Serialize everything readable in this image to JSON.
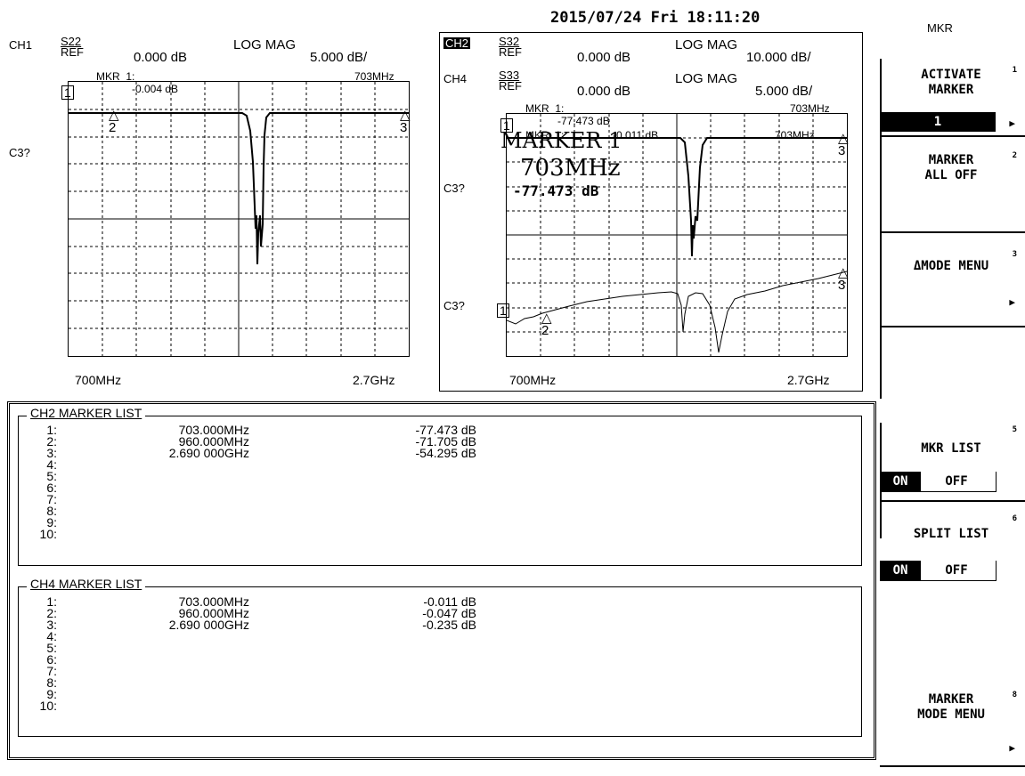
{
  "datetime": "2015/07/24 Fri 18:11:20",
  "softkeys": {
    "menu_title": "MKR",
    "activate_marker": {
      "line1": "ACTIVATE",
      "line2": "MARKER",
      "value": "1",
      "num": "1"
    },
    "marker_all_off": {
      "line1": "MARKER",
      "line2": "ALL OFF",
      "num": "2"
    },
    "delta_mode_menu": {
      "label": "ΔMODE MENU",
      "num": "3"
    },
    "mkr_list": {
      "label": "MKR LIST",
      "on": "ON",
      "off": "OFF",
      "num": "5"
    },
    "split_list": {
      "label": "SPLIT LIST",
      "on": "ON",
      "off": "OFF",
      "num": "6"
    },
    "marker_mode_menu": {
      "line1": "MARKER",
      "line2": "MODE MENU",
      "num": "8"
    }
  },
  "left_plot": {
    "ch": "CH1",
    "param": "S22",
    "format": "LOG MAG",
    "ref_label": "REF",
    "ref": "0.000 dB",
    "scale": "5.000 dB/",
    "mkr_label": "MKR  1:",
    "mkr_freq": "703MHz",
    "mkr_val": "-0.004 dB",
    "side_label": "C3?",
    "start": "700MHz",
    "stop": "2.7GHz",
    "markers": [
      "1",
      "2",
      "3"
    ]
  },
  "right_plot": {
    "ch_a": "CH2",
    "param_a": "S32",
    "format_a": "LOG MAG",
    "ref_a": "0.000 dB",
    "scale_a": "10.000 dB/",
    "ch_b": "CH4",
    "param_b": "S33",
    "format_b": "LOG MAG",
    "ref_b": "0.000 dB",
    "scale_b": "5.000 dB/",
    "ref_label": "REF",
    "mkr_label": "MKR  1:",
    "mkr_freq": "703MHz",
    "mkr_val": "-77.473 dB",
    "mkr_label2": "MKR  1:",
    "mkr_val2": "-0.011 dB",
    "mkr_freq2": "703MHz",
    "big_marker": "MARKER 1",
    "big_freq": "703MHz",
    "big_val": "-77.473 dB",
    "side_label_1": "C3?",
    "side_label_2": "C3?",
    "start": "700MHz",
    "stop": "2.7GHz",
    "markers": [
      "1",
      "2",
      "3"
    ]
  },
  "ch2_list": {
    "title": "CH2 MARKER LIST",
    "rows": [
      {
        "n": "1:",
        "f": "703.000MHz",
        "v": "-77.473 dB"
      },
      {
        "n": "2:",
        "f": "960.000MHz",
        "v": "-71.705 dB"
      },
      {
        "n": "3:",
        "f": "2.690 000GHz",
        "v": "-54.295 dB"
      },
      {
        "n": "4:",
        "f": "",
        "v": ""
      },
      {
        "n": "5:",
        "f": "",
        "v": ""
      },
      {
        "n": "6:",
        "f": "",
        "v": ""
      },
      {
        "n": "7:",
        "f": "",
        "v": ""
      },
      {
        "n": "8:",
        "f": "",
        "v": ""
      },
      {
        "n": "9:",
        "f": "",
        "v": ""
      },
      {
        "n": "10:",
        "f": "",
        "v": ""
      }
    ]
  },
  "ch4_list": {
    "title": "CH4 MARKER LIST",
    "rows": [
      {
        "n": "1:",
        "f": "703.000MHz",
        "v": "-0.011 dB"
      },
      {
        "n": "2:",
        "f": "960.000MHz",
        "v": "-0.047 dB"
      },
      {
        "n": "3:",
        "f": "2.690 000GHz",
        "v": "-0.235 dB"
      },
      {
        "n": "4:",
        "f": "",
        "v": ""
      },
      {
        "n": "5:",
        "f": "",
        "v": ""
      },
      {
        "n": "6:",
        "f": "",
        "v": ""
      },
      {
        "n": "7:",
        "f": "",
        "v": ""
      },
      {
        "n": "8:",
        "f": "",
        "v": ""
      },
      {
        "n": "9:",
        "f": "",
        "v": ""
      },
      {
        "n": "10:",
        "f": "",
        "v": ""
      }
    ]
  }
}
